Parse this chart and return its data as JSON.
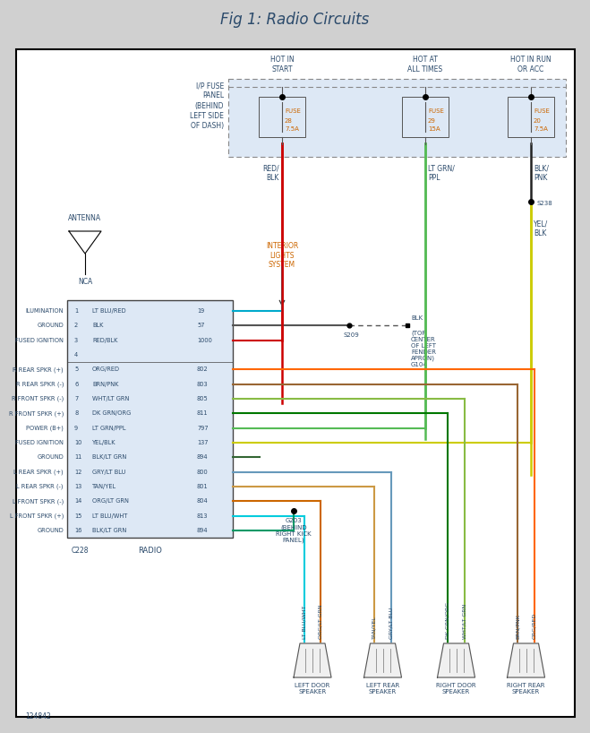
{
  "title": "Fig 1: Radio Circuits",
  "title_color": "#2b4a6b",
  "bg_color": "#d0d0d0",
  "diagram_bg": "#ffffff",
  "text_color": "#2b4a6b",
  "orange_text": "#cc6600",
  "fuse_bg": "#dde8f5",
  "radio_box_bg": "#dde8f5",
  "footnote": "124842",
  "radio_pins": [
    {
      "pin": 1,
      "label": "ILUMINATION",
      "wire": "LT BLU/RED",
      "num": "19",
      "wcolor": "#00aacc"
    },
    {
      "pin": 2,
      "label": "GROUND",
      "wire": "BLK",
      "num": "57",
      "wcolor": "#555555"
    },
    {
      "pin": 3,
      "label": "FUSED IGNITION",
      "wire": "RED/BLK",
      "num": "1000",
      "wcolor": "#cc0000"
    },
    {
      "pin": 4,
      "label": "",
      "wire": "",
      "num": "",
      "wcolor": null
    },
    {
      "pin": 5,
      "label": "R REAR SPKR (+)",
      "wire": "ORG/RED",
      "num": "802",
      "wcolor": "#ff6600"
    },
    {
      "pin": 6,
      "label": "R REAR SPKR (-)",
      "wire": "BRN/PNK",
      "num": "803",
      "wcolor": "#996633"
    },
    {
      "pin": 7,
      "label": "R FRONT SPKR (-)",
      "wire": "WHT/LT GRN",
      "num": "805",
      "wcolor": "#88bb44"
    },
    {
      "pin": 8,
      "label": "R FRONT SPKR (+)",
      "wire": "DK GRN/ORG",
      "num": "811",
      "wcolor": "#007700"
    },
    {
      "pin": 9,
      "label": "POWER (B+)",
      "wire": "LT GRN/PPL",
      "num": "797",
      "wcolor": "#55bb55"
    },
    {
      "pin": 10,
      "label": "FUSED IGNITION",
      "wire": "YEL/BLK",
      "num": "137",
      "wcolor": "#cccc00"
    },
    {
      "pin": 11,
      "label": "GROUND",
      "wire": "BLK/LT GRN",
      "num": "894",
      "wcolor": "#336633"
    },
    {
      "pin": 12,
      "label": "L REAR SPKR (+)",
      "wire": "GRY/LT BLU",
      "num": "800",
      "wcolor": "#6699bb"
    },
    {
      "pin": 13,
      "label": "L REAR SPKR (-)",
      "wire": "TAN/YEL",
      "num": "801",
      "wcolor": "#cc9944"
    },
    {
      "pin": 14,
      "label": "L FRONT SPKR (-)",
      "wire": "ORG/LT GRN",
      "num": "804",
      "wcolor": "#cc6600"
    },
    {
      "pin": 15,
      "label": "L FRONT SPKR (+)",
      "wire": "LT BLU/WHT",
      "num": "813",
      "wcolor": "#00ccdd"
    },
    {
      "pin": 16,
      "label": "GROUND",
      "wire": "BLK/LT GRN",
      "num": "894",
      "wcolor": "#009966"
    }
  ]
}
